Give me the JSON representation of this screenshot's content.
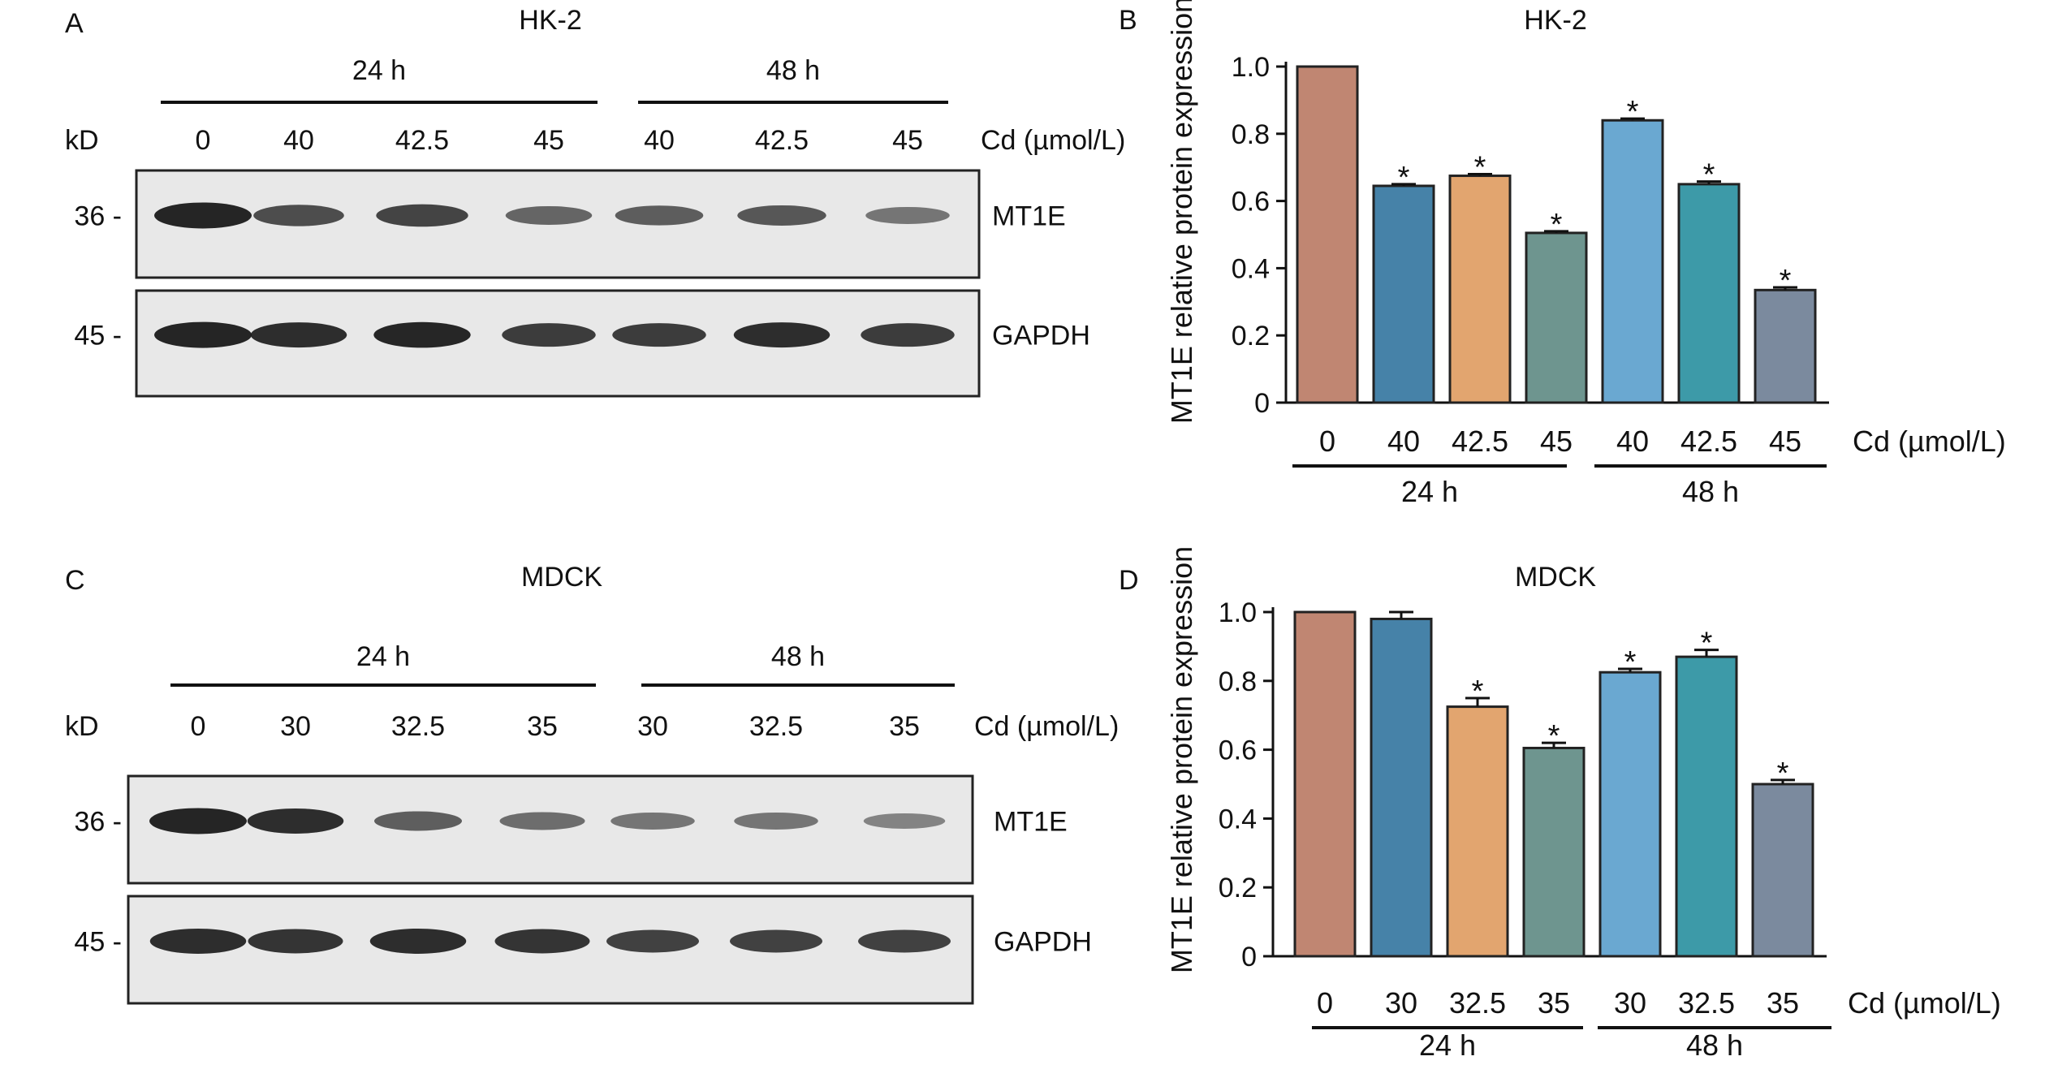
{
  "colors": {
    "bar_palette": [
      "#c08672",
      "#4682a8",
      "#e2a56f",
      "#6e958f",
      "#6aa8d1",
      "#3d9aa8",
      "#7b8a9e"
    ],
    "axis": "#111111",
    "blot_bg": "#e8e8e8",
    "band": "#1a1a1a"
  },
  "panels": {
    "A": {
      "letter": "A",
      "title": "HK-2",
      "kd_label": "kD",
      "groups": [
        {
          "label": "24 h"
        },
        {
          "label": "48 h"
        }
      ],
      "lanes": [
        "0",
        "40",
        "42.5",
        "45",
        "40",
        "42.5",
        "45"
      ],
      "cd_label": "Cd (µmol/L)",
      "markers": [
        "36 -",
        "45 -"
      ],
      "blots": [
        {
          "label": "MT1E",
          "intensity": [
            1.0,
            0.72,
            0.78,
            0.55,
            0.62,
            0.65,
            0.45
          ]
        },
        {
          "label": "GAPDH",
          "intensity": [
            1.0,
            0.95,
            0.98,
            0.85,
            0.85,
            0.95,
            0.85
          ]
        }
      ]
    },
    "C": {
      "letter": "C",
      "title": "MDCK",
      "kd_label": "kD",
      "groups": [
        {
          "label": "24 h"
        },
        {
          "label": "48 h"
        }
      ],
      "lanes": [
        "0",
        "30",
        "32.5",
        "35",
        "30",
        "32.5",
        "35"
      ],
      "cd_label": "Cd (µmol/L)",
      "markers": [
        "36 -",
        "45 -"
      ],
      "blots": [
        {
          "label": "MT1E",
          "intensity": [
            1.0,
            0.95,
            0.6,
            0.5,
            0.45,
            0.45,
            0.35
          ]
        },
        {
          "label": "GAPDH",
          "intensity": [
            0.95,
            0.9,
            0.95,
            0.9,
            0.8,
            0.8,
            0.8
          ]
        }
      ]
    }
  },
  "chart_data": [
    {
      "panel": "B",
      "letter": "B",
      "type": "bar",
      "title": "HK-2",
      "ylabel": "MT1E relative protein expression",
      "xlabel": "Cd (µmol/L)",
      "ylim": [
        0,
        1.0
      ],
      "yticks": [
        "0",
        "0.2",
        "0.4",
        "0.6",
        "0.8",
        "1.0"
      ],
      "categories": [
        "0",
        "40",
        "42.5",
        "45",
        "40",
        "42.5",
        "45"
      ],
      "values": [
        1.0,
        0.645,
        0.675,
        0.505,
        0.84,
        0.65,
        0.335
      ],
      "errors": [
        0,
        0.005,
        0.005,
        0.005,
        0.005,
        0.008,
        0.008
      ],
      "significant": [
        "",
        "*",
        "*",
        "*",
        "*",
        "*",
        "*"
      ],
      "groups": [
        {
          "label": "24 h",
          "from": 0,
          "to": 3
        },
        {
          "label": "48 h",
          "from": 4,
          "to": 6
        }
      ]
    },
    {
      "panel": "D",
      "letter": "D",
      "type": "bar",
      "title": "MDCK",
      "ylabel": "MT1E relative protein expression",
      "xlabel": "Cd (µmol/L)",
      "ylim": [
        0,
        1.0
      ],
      "yticks": [
        "0",
        "0.2",
        "0.4",
        "0.6",
        "0.8",
        "1.0"
      ],
      "categories": [
        "0",
        "30",
        "32.5",
        "35",
        "30",
        "32.5",
        "35"
      ],
      "values": [
        1.0,
        0.98,
        0.725,
        0.605,
        0.825,
        0.87,
        0.5
      ],
      "errors": [
        0,
        0.02,
        0.025,
        0.015,
        0.01,
        0.02,
        0.012
      ],
      "significant": [
        "",
        "",
        "*",
        "*",
        "*",
        "*",
        "*"
      ],
      "groups": [
        {
          "label": "24 h",
          "from": 0,
          "to": 3
        },
        {
          "label": "48 h",
          "from": 4,
          "to": 6
        }
      ]
    }
  ]
}
